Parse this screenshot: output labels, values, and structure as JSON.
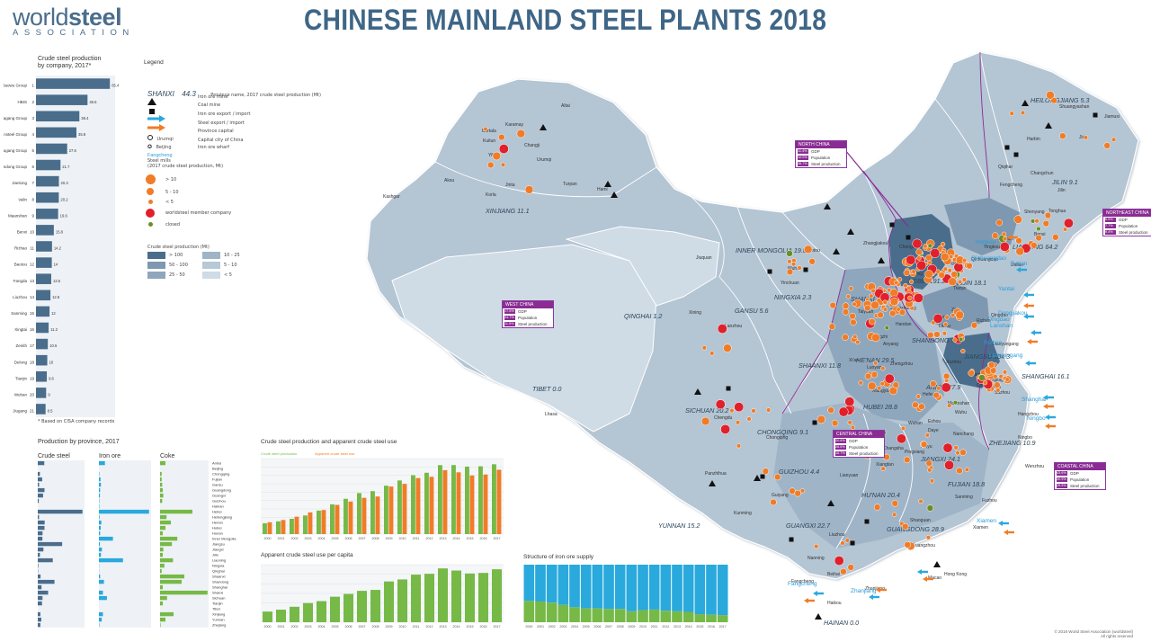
{
  "header": {
    "logo_main_a": "world",
    "logo_main_b": "steel",
    "logo_sub": "ASSOCIATION",
    "title": "CHINESE MAINLAND STEEL PLANTS 2018"
  },
  "company_chart": {
    "title_1": "Crude steel production",
    "title_2": "by company, 2017*",
    "footnote": "* Based on CISA company records",
    "bar_color": "#4a6d8c",
    "companies": [
      "Baowu Group",
      "HBIS",
      "Shagang Group",
      "Ansteel Group",
      "Shougang Group",
      "Shandong Group",
      "Jianlong",
      "Valin",
      "Maanshan",
      "Benxi",
      "Rizhao",
      "Baotou",
      "Fangda",
      "Liuzhou",
      "Sanming",
      "Xingtai",
      "Zenith",
      "Delong",
      "Tianjin",
      "Wuhan",
      "Jiugang"
    ],
    "values": [
      65.4,
      45.6,
      38.4,
      35.8,
      27.6,
      21.7,
      20.3,
      20.2,
      19.6,
      15.8,
      14.2,
      14.0,
      13.5,
      12.8,
      12.0,
      11.2,
      10.5,
      10.0,
      9.6,
      9.0,
      8.5
    ]
  },
  "legend": {
    "title": "Legend",
    "province_example": "SHANXI",
    "province_example_value": "44.3",
    "province_desc": "Province name, 2017 crude steel production (Mt)",
    "iron_ore_mine": "Iron ore mine",
    "coal_mine": "Coal mine",
    "iron_ore_trade": "Iron ore export / import",
    "steel_trade": "Steel export / import",
    "province_capital_sample": "Urumqi",
    "province_capital": "Province capital",
    "capital_sample": "Beijing",
    "capital": "Capital city of China",
    "wharf_sample": "Fangcheng",
    "wharf": "Iron ore wharf",
    "mills_title": "Steel mills",
    "mills_sub": "(2017 crude steel production, Mt)",
    "mill_sizes": [
      "> 10",
      "5 - 10",
      "< 5"
    ],
    "member": "worldsteel member company",
    "closed": "closed",
    "scale_title": "Crude steel production (Mt)",
    "scale_classes": [
      "> 100",
      "10 - 25",
      "50 - 100",
      "5 - 10",
      "25 - 50",
      "< 5"
    ],
    "scale_colors": [
      "#4a6d8c",
      "#9fb4c7",
      "#7d98b0",
      "#b7c8d7",
      "#8fa7bd",
      "#cfdbe5"
    ],
    "mill_color": "#f07c27",
    "member_color": "#e0202a",
    "closed_color": "#6b8e23",
    "iron_arrow_color": "#29a9dc",
    "steel_arrow_color": "#f07c27",
    "wharf_color": "#29a9dc"
  },
  "map": {
    "provinces": [
      {
        "name": "HEILONGJIANG",
        "value": "5.3"
      },
      {
        "name": "JILIN",
        "value": "9.1"
      },
      {
        "name": "LIAONING",
        "value": "64.2"
      },
      {
        "name": "INNER MONGOLIA",
        "value": "19.8"
      },
      {
        "name": "XINJIANG",
        "value": "11.1"
      },
      {
        "name": "HEBEI",
        "value": "191.2"
      },
      {
        "name": "TIANJIN",
        "value": "18.1"
      },
      {
        "name": "SHANXI",
        "value": "44.3"
      },
      {
        "name": "NINGXIA",
        "value": "2.3"
      },
      {
        "name": "GANSU",
        "value": "5.6"
      },
      {
        "name": "QINGHAI",
        "value": "1.2"
      },
      {
        "name": "SHANDONG",
        "value": "71.5"
      },
      {
        "name": "HE'NAN",
        "value": "29.5"
      },
      {
        "name": "JIANGSU",
        "value": "104.3"
      },
      {
        "name": "SHAANXI",
        "value": "11.8"
      },
      {
        "name": "SHANGHAI",
        "value": "16.1"
      },
      {
        "name": "TIBET",
        "value": "0.0"
      },
      {
        "name": "ANHUI",
        "value": "27.9"
      },
      {
        "name": "HUBEI",
        "value": "28.8"
      },
      {
        "name": "SICHUAN",
        "value": "20.2"
      },
      {
        "name": "CHONGQING",
        "value": "9.1"
      },
      {
        "name": "ZHEJIANG",
        "value": "10.9"
      },
      {
        "name": "JIANGXI",
        "value": "24.1"
      },
      {
        "name": "GUIZHOU",
        "value": "4.4"
      },
      {
        "name": "FUJIAN",
        "value": "18.8"
      },
      {
        "name": "HU'NAN",
        "value": "20.4"
      },
      {
        "name": "YUNNAN",
        "value": "15.2"
      },
      {
        "name": "GUANGXI",
        "value": "22.7"
      },
      {
        "name": "GUANGDONG",
        "value": "28.9"
      },
      {
        "name": "HAINAN",
        "value": "0.0"
      }
    ],
    "cities": [
      "Altai",
      "Karamay",
      "Bortala",
      "Kuitun",
      "Changji",
      "Urumqi",
      "Yili",
      "Hami",
      "Aksu",
      "Jinta",
      "Turpan",
      "Korla",
      "Kashgar",
      "Harbin",
      "Qiqihar",
      "Jiamusi",
      "Shuangyashan",
      "Jixi",
      "Changchun",
      "Jilin",
      "Tonghua",
      "Fengcheng",
      "Shenyang",
      "Anshan",
      "Benxi",
      "Yingkou",
      "Dalian",
      "Beijing",
      "Tianjin",
      "Tangshan",
      "Qinhuangdao",
      "Chengde",
      "Zhangjiakou",
      "Baotou",
      "Wuhai",
      "Yinchuan",
      "Lanzhou",
      "Jiuquan",
      "Xining",
      "Xi'an",
      "Taiyuan",
      "Changzhi",
      "Shijiazhuang",
      "Handan",
      "Anyang",
      "Jinan",
      "Zibo",
      "Rizhao",
      "Qingdao",
      "Laiwu",
      "Xuzhou",
      "Lianyungang",
      "Nanjing",
      "Wuxi",
      "Suzhou",
      "Zhangjiagang",
      "Changzhou",
      "Hefei",
      "Ma'anshan",
      "Wuhu",
      "Wuhan",
      "Ezhou",
      "Daye",
      "Xiangyang",
      "Zhengzhou",
      "Luoyang",
      "Chengdu",
      "Panzhihua",
      "Chongqing",
      "Kunming",
      "Guiyang",
      "Changsha",
      "Xiangtan",
      "Lianyuan",
      "Nanchang",
      "Xinyu",
      "Pingxiang",
      "Hangzhou",
      "Ningbo",
      "Wenzhou",
      "Fuzhou",
      "Xiamen",
      "Sanming",
      "Guangzhou",
      "Shaoguan",
      "Zhanjiang",
      "Nanning",
      "Liuzhou",
      "Beihai",
      "Fangcheng",
      "Haikou",
      "Lhasa",
      "Hong Kong",
      "Macao"
    ],
    "ports": [
      "Shanghai",
      "Lianyungang",
      "Rizhao",
      "Qingdao",
      "Yantai",
      "Dalian",
      "Yingkou",
      "Qinhuangdao",
      "Ningbo",
      "Xiamen",
      "Zhanjiang",
      "Fangcheng",
      "Lanshan",
      "Dongjiakou"
    ],
    "closed_label": "closed",
    "regions": [
      {
        "name": "NORTH CHINA",
        "rows": [
          {
            "pct": "11.4%",
            "label": "GDP"
          },
          {
            "pct": "10.0%",
            "label": "Population"
          },
          {
            "pct": "36.7%",
            "label": "Steel production"
          }
        ]
      },
      {
        "name": "NORTHEAST CHINA",
        "rows": [
          {
            "pct": "6.9%",
            "label": "GDP"
          },
          {
            "pct": "7.7%",
            "label": "Population"
          },
          {
            "pct": "9.4%",
            "label": "Steel production"
          }
        ]
      },
      {
        "name": "WEST CHINA",
        "rows": [
          {
            "pct": "17.5%",
            "label": "GDP"
          },
          {
            "pct": "24.7%",
            "label": "Population"
          },
          {
            "pct": "11.5%",
            "label": "Steel production"
          }
        ]
      },
      {
        "name": "CENTRAL CHINA",
        "rows": [
          {
            "pct": "20.6%",
            "label": "GDP"
          },
          {
            "pct": "26.6%",
            "label": "Population"
          },
          {
            "pct": "16.7%",
            "label": "Steel production"
          }
        ]
      },
      {
        "name": "COASTAL CHINA",
        "rows": [
          {
            "pct": "43.6%",
            "label": "GDP"
          },
          {
            "pct": "30.9%",
            "label": "Population"
          },
          {
            "pct": "25.9%",
            "label": "Steel production"
          }
        ]
      }
    ]
  },
  "province_production": {
    "title": "Production by province, 2017",
    "col_titles": [
      "Crude steel",
      "Iron ore",
      "Coke"
    ],
    "provinces": [
      "Anhui",
      "Beijing",
      "Chongqing",
      "Fujian",
      "Gansu",
      "Guangdong",
      "Guangxi",
      "Guizhou",
      "Hainan",
      "Hebei",
      "Heilongjiang",
      "Henan",
      "Hubei",
      "Hunan",
      "Inner Mongolia",
      "Jiangsu",
      "Jiangxi",
      "Jilin",
      "Liaoning",
      "Ningxia",
      "Qinghai",
      "Shaanxi",
      "Shandong",
      "Shanghai",
      "Shanxi",
      "Sichuan",
      "Tianjin",
      "Tibet",
      "Xinjiang",
      "Yunnan",
      "Zhejiang"
    ],
    "crude_steel": [
      27.9,
      0,
      9.1,
      18.8,
      5.6,
      28.9,
      22.7,
      4.4,
      0,
      191.2,
      5.3,
      29.5,
      28.8,
      20.4,
      19.8,
      104.3,
      24.1,
      9.1,
      64.2,
      2.3,
      1.2,
      11.8,
      71.5,
      16.1,
      44.3,
      20.2,
      18.1,
      0,
      11.1,
      15.2,
      10.9
    ],
    "iron_ore": [
      30,
      0,
      2,
      8,
      10,
      6,
      5,
      2,
      2,
      250,
      3,
      12,
      9,
      6,
      70,
      5,
      15,
      10,
      120,
      1,
      1,
      6,
      25,
      0,
      20,
      40,
      0,
      0,
      20,
      14,
      2
    ],
    "coke": [
      10,
      0,
      3,
      3,
      4,
      5,
      6,
      4,
      0,
      60,
      12,
      20,
      10,
      5,
      32,
      22,
      6,
      5,
      24,
      8,
      3,
      45,
      40,
      5,
      88,
      13,
      5,
      0,
      25,
      10,
      1
    ],
    "bar_colors": [
      "#4a6d8c",
      "#29a9dc",
      "#76b947"
    ]
  },
  "chart_data": [
    {
      "type": "bar",
      "title": "Crude steel production and apparent crude steel use",
      "categories": [
        "2000",
        "2001",
        "2002",
        "2003",
        "2004",
        "2005",
        "2006",
        "2007",
        "2008",
        "2009",
        "2010",
        "2011",
        "2012",
        "2013",
        "2014",
        "2015",
        "2016",
        "2017"
      ],
      "series": [
        {
          "name": "Crude steel production",
          "values": [
            129,
            152,
            182,
            222,
            280,
            355,
            421,
            489,
            512,
            577,
            639,
            702,
            731,
            822,
            823,
            804,
            808,
            832
          ]
        },
        {
          "name": "Apparent crude steel use",
          "values": [
            141,
            168,
            207,
            259,
            287,
            348,
            388,
            432,
            448,
            567,
            598,
            668,
            683,
            762,
            736,
            699,
            710,
            767
          ]
        }
      ],
      "ylabel": "Mt",
      "ylim": [
        0,
        900
      ],
      "colors": [
        "#76b947",
        "#f07c27"
      ]
    },
    {
      "type": "bar",
      "title": "Apparent crude steel use per capita",
      "categories": [
        "2000",
        "2001",
        "2002",
        "2003",
        "2004",
        "2005",
        "2006",
        "2007",
        "2008",
        "2009",
        "2010",
        "2011",
        "2012",
        "2013",
        "2014",
        "2015",
        "2016",
        "2017"
      ],
      "series": [
        {
          "name": "Steel use per capita",
          "values": [
            111,
            131,
            161,
            200,
            220,
            266,
            295,
            327,
            337,
            425,
            446,
            496,
            505,
            561,
            539,
            508,
            514,
            552
          ]
        }
      ],
      "ylim": [
        0,
        600
      ],
      "colors": [
        "#76b947",
        "#e0202a"
      ]
    },
    {
      "type": "bar",
      "title": "Structure of iron ore supply",
      "categories": [
        "2000",
        "2001",
        "2002",
        "2003",
        "2004",
        "2005",
        "2006",
        "2007",
        "2008",
        "2009",
        "2010",
        "2011",
        "2012",
        "2013",
        "2014",
        "2015",
        "2016",
        "2017"
      ],
      "series": [
        {
          "name": "Domestic",
          "values": [
            37,
            36,
            34,
            30,
            26,
            24,
            24,
            23,
            23,
            19,
            21,
            22,
            20,
            19,
            18,
            14,
            13,
            12
          ]
        },
        {
          "name": "Imported",
          "values": [
            63,
            64,
            66,
            70,
            74,
            76,
            76,
            77,
            77,
            81,
            79,
            78,
            80,
            81,
            82,
            86,
            87,
            88
          ]
        }
      ],
      "ylim": [
        0,
        100
      ],
      "colors": [
        "#76b947",
        "#29a9dc"
      ]
    }
  ],
  "footer": {
    "line1": "© 2018 World Steel Association (worldsteel)",
    "line2": "All rights reserved"
  }
}
